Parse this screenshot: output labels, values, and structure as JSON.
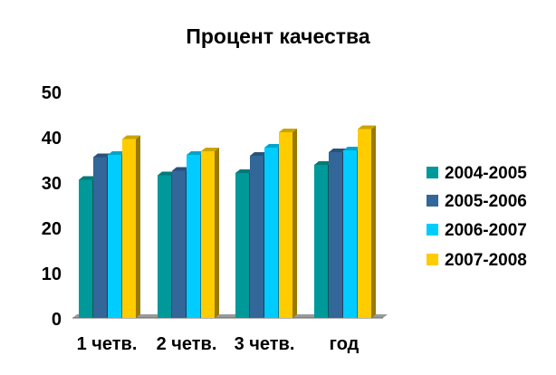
{
  "chart_data": {
    "type": "bar",
    "title": "Процент качества",
    "categories": [
      "1 четв.",
      "2 четв.",
      "3 четв.",
      "год"
    ],
    "series": [
      {
        "name": "2004-2005",
        "color": "#009999",
        "values": [
          30.5,
          31.5,
          32,
          33.8
        ]
      },
      {
        "name": "2005-2006",
        "color": "#336699",
        "values": [
          35.5,
          32.5,
          35.8,
          36.6
        ]
      },
      {
        "name": "2006-2007",
        "color": "#00CCFF",
        "values": [
          36,
          36,
          37.6,
          37
        ]
      },
      {
        "name": "2007-2008",
        "color": "#FFCC00",
        "values": [
          39.5,
          36.8,
          41,
          41.7
        ]
      }
    ],
    "ylim": [
      0,
      50
    ],
    "yticks": [
      "0",
      "10",
      "20",
      "30",
      "40",
      "50"
    ],
    "grid": false,
    "legend_position": "right"
  }
}
